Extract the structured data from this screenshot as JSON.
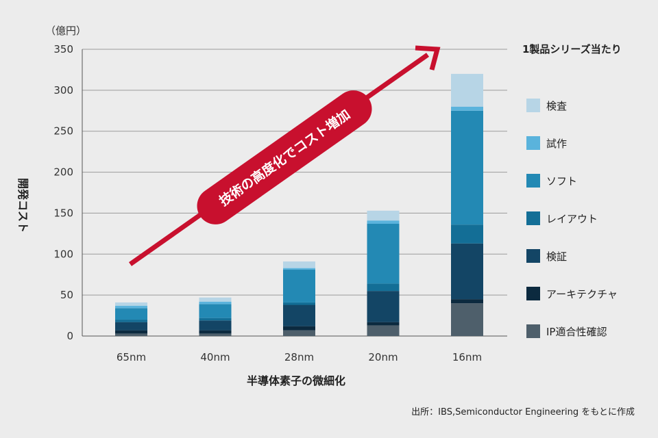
{
  "chart_data": {
    "type": "bar",
    "stacked": true,
    "unit_label": "（億円）",
    "ylabel": "開発コスト",
    "xlabel": "半導体素子の微細化",
    "ylim": [
      0,
      350
    ],
    "yticks": [
      0,
      50,
      100,
      150,
      200,
      250,
      300,
      350
    ],
    "categories": [
      "65nm",
      "40nm",
      "28nm",
      "20nm",
      "16nm"
    ],
    "legend_title": "1製品シリーズ当たり",
    "series": [
      {
        "name": "IP適合性確認",
        "color": "#4e5f6b",
        "values": [
          3,
          3,
          7,
          13,
          40
        ]
      },
      {
        "name": "アーキテクチャ",
        "color": "#0c2a3f",
        "values": [
          4,
          4,
          5,
          4,
          5
        ]
      },
      {
        "name": "検証",
        "color": "#134565",
        "values": [
          10,
          12,
          26,
          38,
          68
        ]
      },
      {
        "name": "レイアウト",
        "color": "#136e96",
        "values": [
          3,
          3,
          3,
          9,
          23
        ]
      },
      {
        "name": "ソフト",
        "color": "#2389b4",
        "values": [
          14,
          17,
          40,
          73,
          139
        ]
      },
      {
        "name": "試作",
        "color": "#5ab3dc",
        "values": [
          3,
          3,
          2,
          4,
          5
        ]
      },
      {
        "name": "検査",
        "color": "#b7d5e6",
        "values": [
          4,
          5,
          8,
          12,
          40
        ]
      }
    ],
    "annotation": "技術の高度化でコスト増加"
  },
  "colors": {
    "accent": "#c8102e",
    "axis": "#555555",
    "grid": "#9a9a9a"
  },
  "source_note": "出所：IBS,Semiconductor Engineering をもとに作成"
}
